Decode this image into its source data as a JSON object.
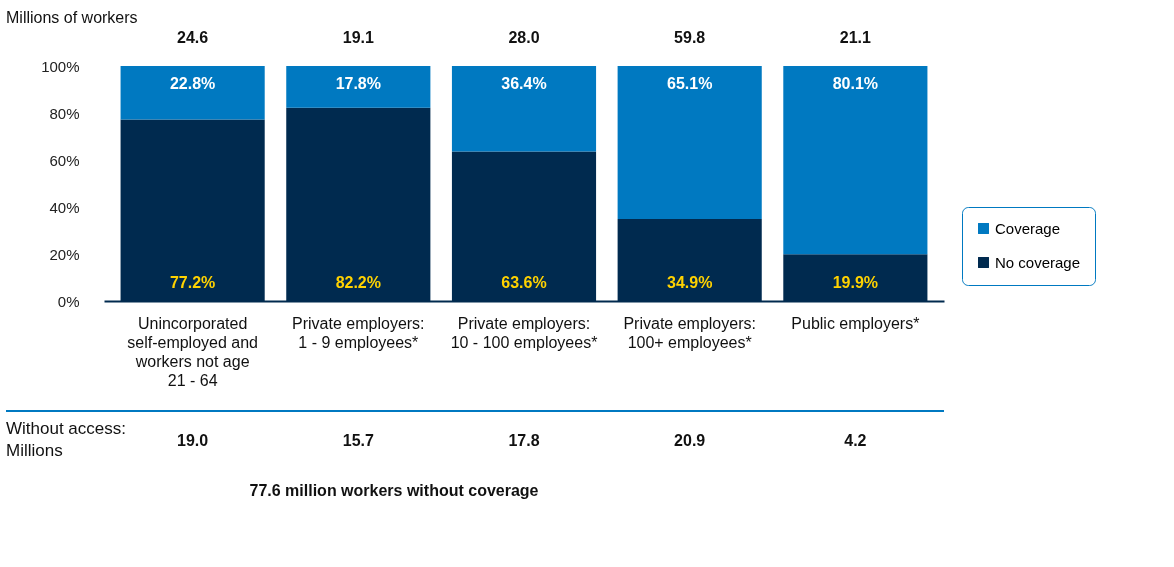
{
  "chart_data": {
    "type": "bar",
    "stacked": true,
    "categories": [
      "Unincorporated\nself-employed and\nworkers not age\n21 - 64",
      "Private employers:\n1 - 9 employees*",
      "Private employers:\n10 - 100 employees*",
      "Private employers:\n100+ employees*",
      "Public employers*"
    ],
    "series": [
      {
        "name": "No coverage",
        "color": "#002a4f",
        "values": [
          77.2,
          82.2,
          63.6,
          34.9,
          19.9
        ],
        "value_labels": [
          "77.2%",
          "82.2%",
          "63.6%",
          "34.9%",
          "19.9%"
        ]
      },
      {
        "name": "Coverage",
        "color": "#0079c1",
        "values": [
          22.8,
          17.8,
          36.4,
          65.1,
          80.1
        ],
        "value_labels": [
          "22.8%",
          "17.8%",
          "36.4%",
          "65.1%",
          "80.1%"
        ]
      }
    ],
    "ylim": [
      0,
      100
    ],
    "yticks": [
      {
        "value": 0,
        "label": "0%"
      },
      {
        "value": 20,
        "label": "20%"
      },
      {
        "value": 40,
        "label": "40%"
      },
      {
        "value": 60,
        "label": "60%"
      },
      {
        "value": 80,
        "label": "80%"
      },
      {
        "value": 100,
        "label": "100%"
      }
    ],
    "grid": false,
    "legend": "right",
    "annotations": [
      "Millions of workers",
      {
        "text": "24.6",
        "x": "Unincorporated\nself-employed and\nworkers not age\n21 - 64",
        "y": 100
      },
      {
        "text": "19.1",
        "x": "Private employers:\n1 - 9 employees*",
        "y": 100
      },
      {
        "text": "28.0",
        "x": "Private employers:\n10 - 100 employees*",
        "y": 100
      },
      {
        "text": "59.8",
        "x": "Private employers:\n100+ employees*",
        "y": 100
      },
      {
        "text": "21.1",
        "x": "Public employers*",
        "y": 100
      },
      "Without access:\nMillions",
      "19.0",
      "15.7",
      "17.8",
      "20.9",
      "4.2",
      "77.6 million workers without coverage"
    ]
  }
}
